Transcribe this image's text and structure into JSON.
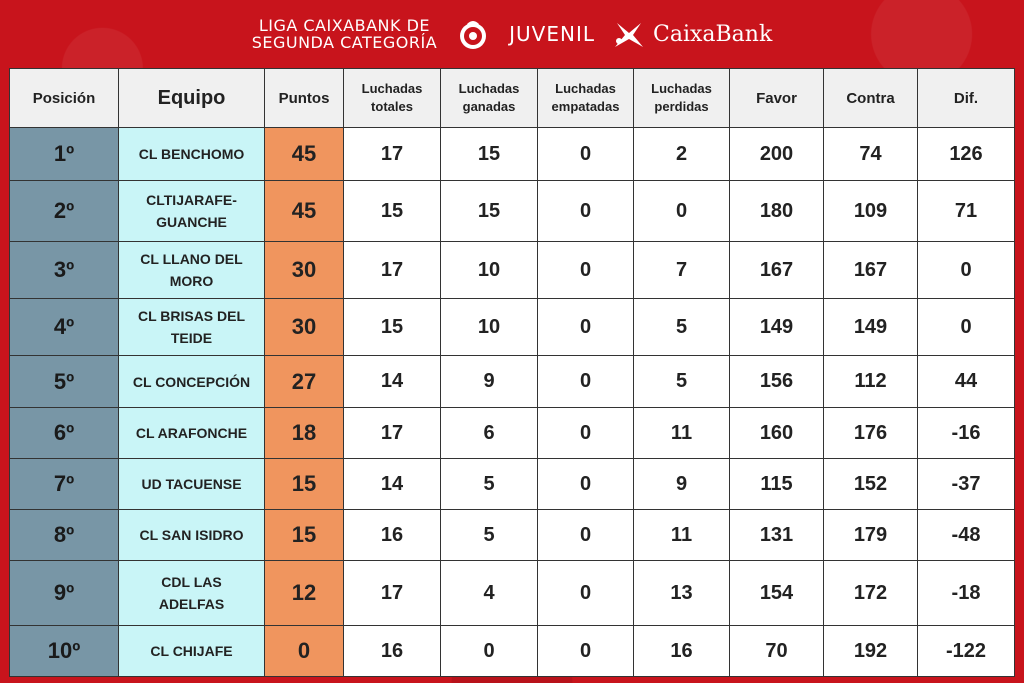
{
  "header": {
    "league_line1": "LIGA CAIXABANK DE",
    "league_line2": "SEGUNDA CATEGORÍA",
    "category": "JUVENIL",
    "sponsor": "CaixaBank",
    "emblem_icon": "federation-emblem-icon",
    "sponsor_icon": "caixabank-star-icon"
  },
  "columns": [
    "Posición",
    "Equipo",
    "Puntos",
    "Luchadas totales",
    "Luchadas ganadas",
    "Luchadas empatadas",
    "Luchadas perdidas",
    "Favor",
    "Contra",
    "Dif."
  ],
  "rows": [
    {
      "pos": "1º",
      "team": "CL BENCHOMO",
      "pts": "45",
      "total": "17",
      "won": "15",
      "drawn": "0",
      "lost": "2",
      "favor": "200",
      "contra": "74",
      "dif": "126"
    },
    {
      "pos": "2º",
      "team": "CLTIJARAFE-GUANCHE",
      "pts": "45",
      "total": "15",
      "won": "15",
      "drawn": "0",
      "lost": "0",
      "favor": "180",
      "contra": "109",
      "dif": "71"
    },
    {
      "pos": "3º",
      "team": "CL LLANO DEL MORO",
      "pts": "30",
      "total": "17",
      "won": "10",
      "drawn": "0",
      "lost": "7",
      "favor": "167",
      "contra": "167",
      "dif": "0"
    },
    {
      "pos": "4º",
      "team": "CL BRISAS DEL TEIDE",
      "pts": "30",
      "total": "15",
      "won": "10",
      "drawn": "0",
      "lost": "5",
      "favor": "149",
      "contra": "149",
      "dif": "0"
    },
    {
      "pos": "5º",
      "team": "CL CONCEPCIÓN",
      "pts": "27",
      "total": "14",
      "won": "9",
      "drawn": "0",
      "lost": "5",
      "favor": "156",
      "contra": "112",
      "dif": "44"
    },
    {
      "pos": "6º",
      "team": "CL ARAFONCHE",
      "pts": "18",
      "total": "17",
      "won": "6",
      "drawn": "0",
      "lost": "11",
      "favor": "160",
      "contra": "176",
      "dif": "-16"
    },
    {
      "pos": "7º",
      "team": "UD TACUENSE",
      "pts": "15",
      "total": "14",
      "won": "5",
      "drawn": "0",
      "lost": "9",
      "favor": "115",
      "contra": "152",
      "dif": "-37"
    },
    {
      "pos": "8º",
      "team": "CL SAN ISIDRO",
      "pts": "15",
      "total": "16",
      "won": "5",
      "drawn": "0",
      "lost": "11",
      "favor": "131",
      "contra": "179",
      "dif": "-48"
    },
    {
      "pos": "9º",
      "team": "CDL LAS ADELFAS",
      "pts": "12",
      "total": "17",
      "won": "4",
      "drawn": "0",
      "lost": "13",
      "favor": "154",
      "contra": "172",
      "dif": "-18"
    },
    {
      "pos": "10º",
      "team": "CL CHIJAFE",
      "pts": "0",
      "total": "16",
      "won": "0",
      "drawn": "0",
      "lost": "16",
      "favor": "70",
      "contra": "192",
      "dif": "-122"
    }
  ],
  "colors": {
    "background": "#c8141c",
    "position_cell": "#7896a6",
    "team_cell": "#c9f5f7",
    "points_cell": "#f0955e"
  }
}
